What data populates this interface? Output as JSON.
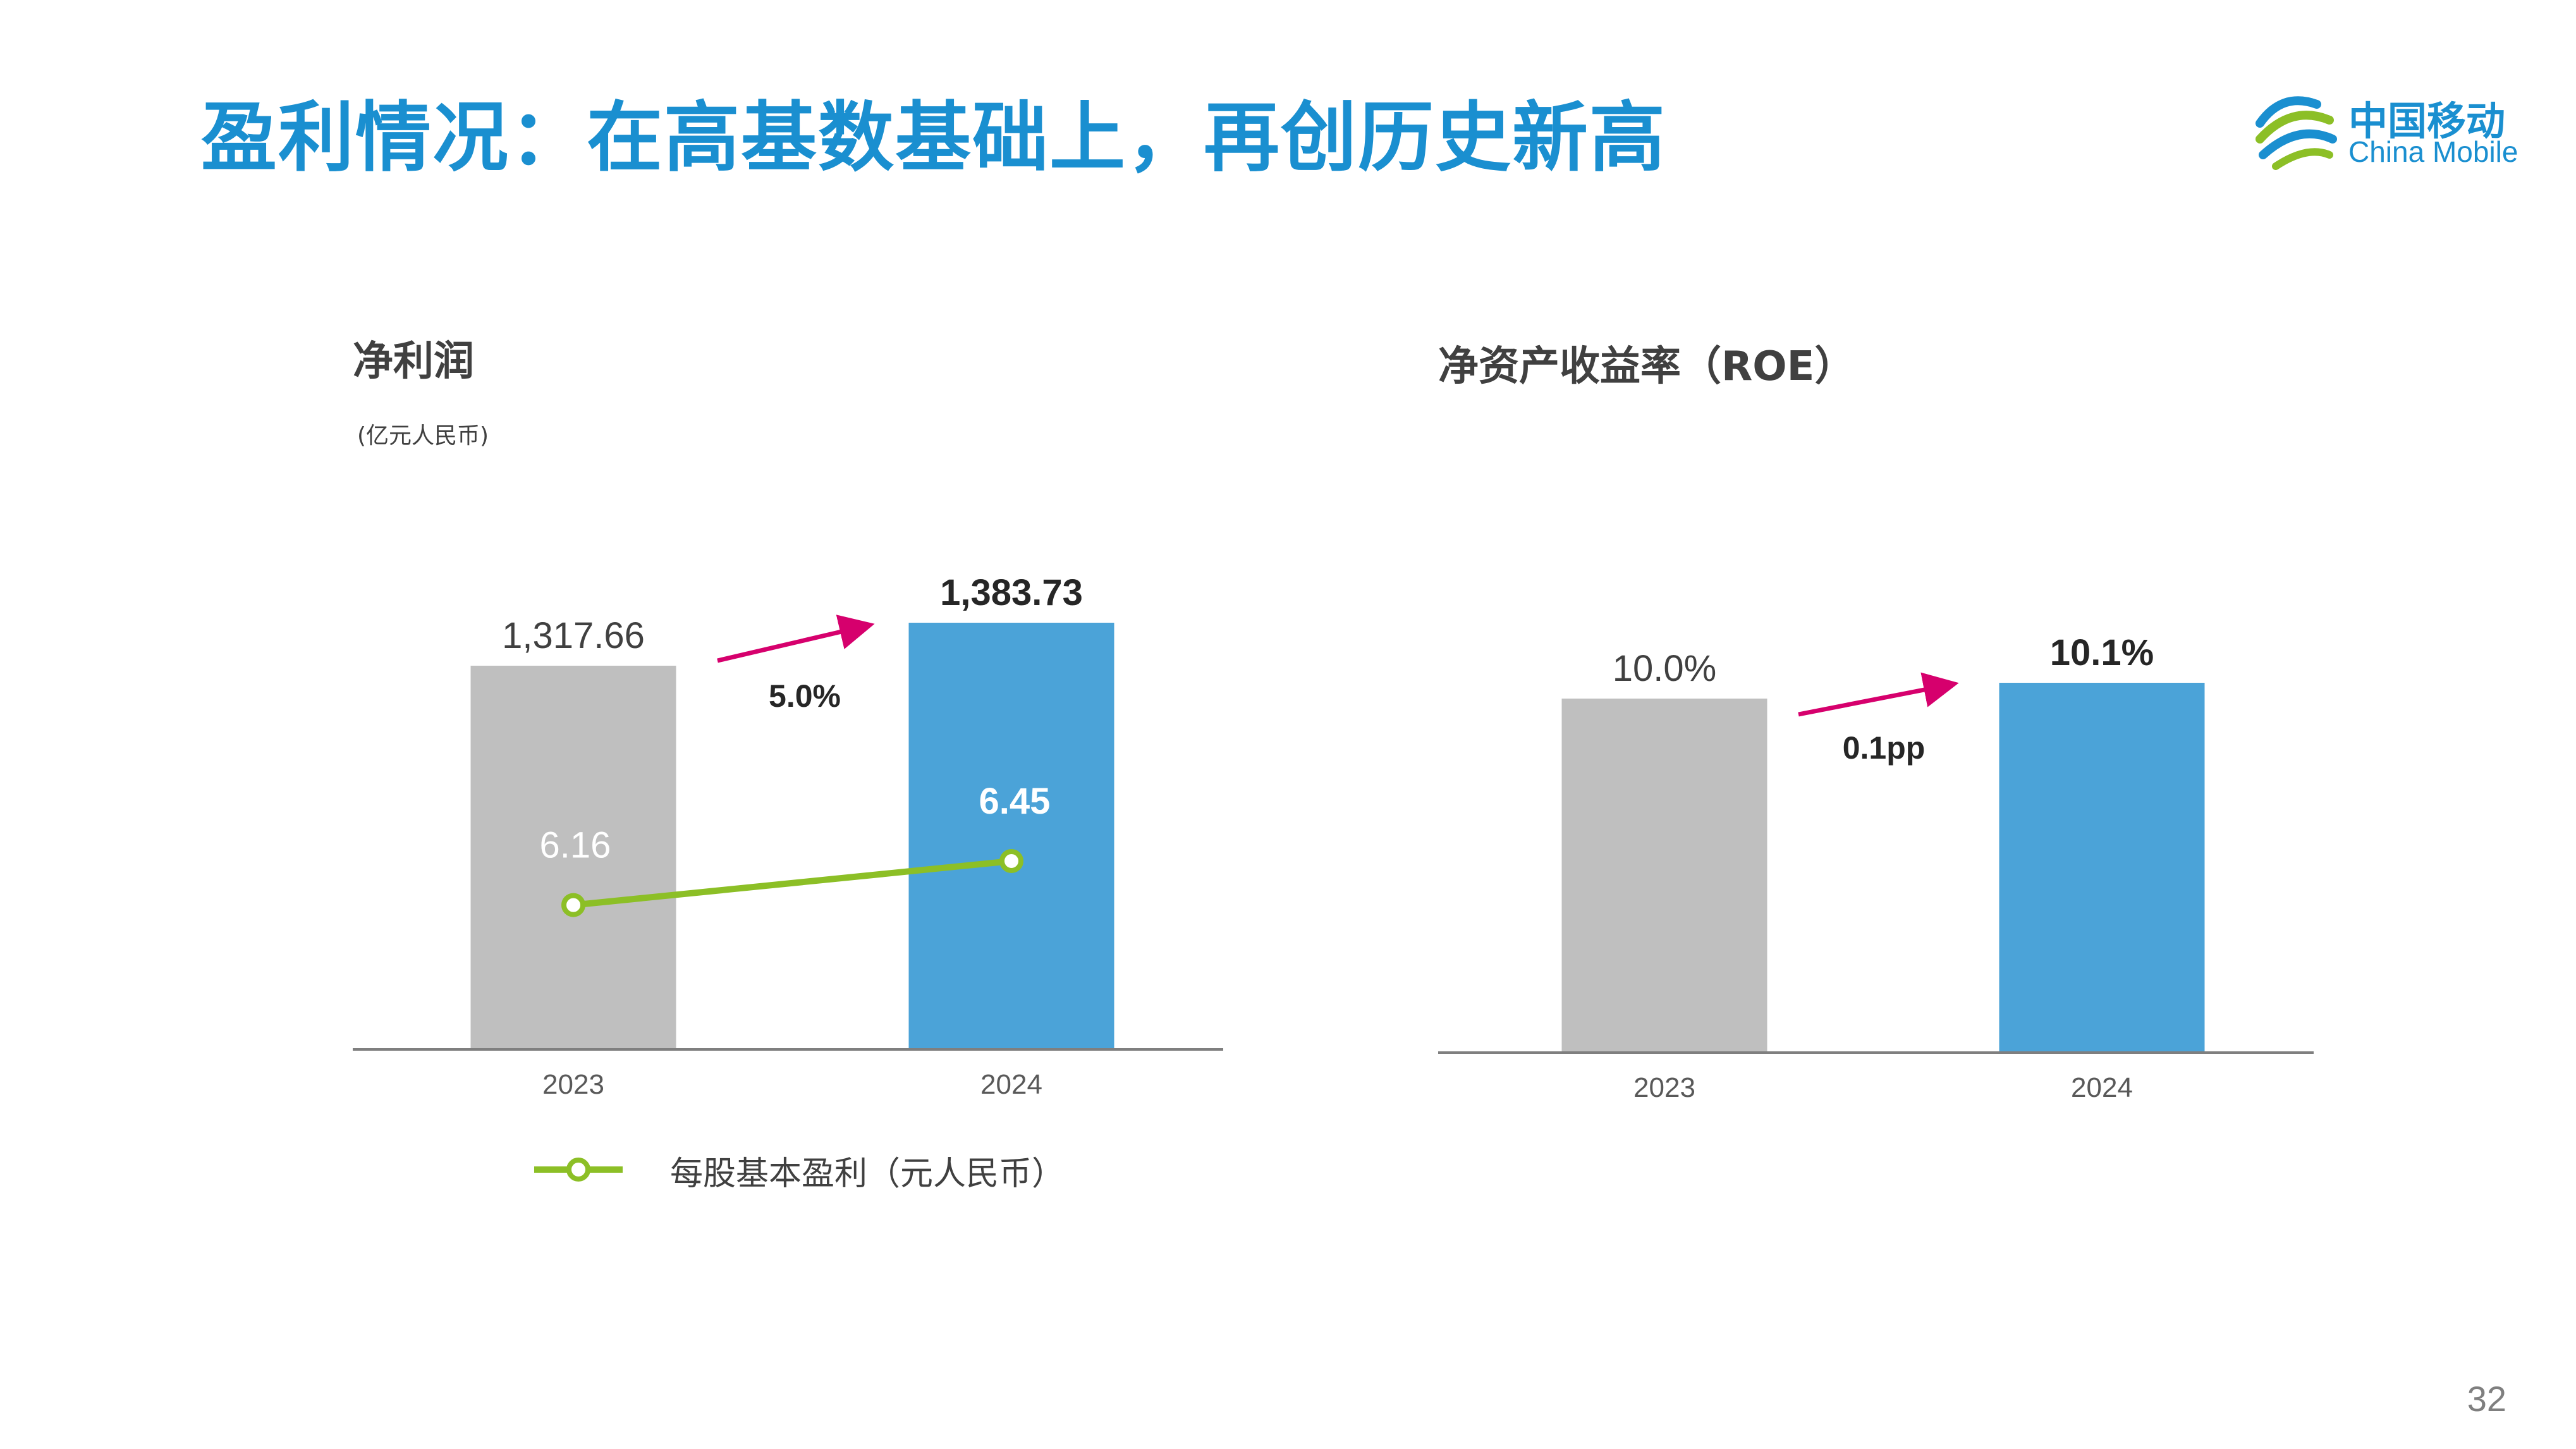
{
  "slide": {
    "title": "盈利情况：在高基数基础上，再创历史新高",
    "page_number": "32"
  },
  "logo": {
    "cn": "中国移动",
    "en": "China Mobile"
  },
  "colors": {
    "title": "#1a8fd0",
    "bar_2023": "#bfbfbf",
    "bar_2024": "#4ba3d8",
    "eps_line": "#8cbf26",
    "growth_arrow": "#d6006d",
    "axis": "#7f7f7f"
  },
  "chart_data": [
    {
      "type": "bar",
      "title": "净利润",
      "unit": "(亿元人民币)",
      "categories": [
        "2023",
        "2024"
      ],
      "values": [
        1317.66,
        1383.73
      ],
      "value_labels": [
        "1,317.66",
        "1,383.73"
      ],
      "growth_label": "5.0%",
      "line_series": {
        "name": "每股基本盈利（元人民币）",
        "values": [
          6.16,
          6.45
        ],
        "value_labels": [
          "6.16",
          "6.45"
        ]
      }
    },
    {
      "type": "bar",
      "title": "净资产收益率（ROE）",
      "categories": [
        "2023",
        "2024"
      ],
      "values": [
        10.0,
        10.1
      ],
      "value_labels": [
        "10.0%",
        "10.1%"
      ],
      "growth_label": "0.1pp"
    }
  ]
}
